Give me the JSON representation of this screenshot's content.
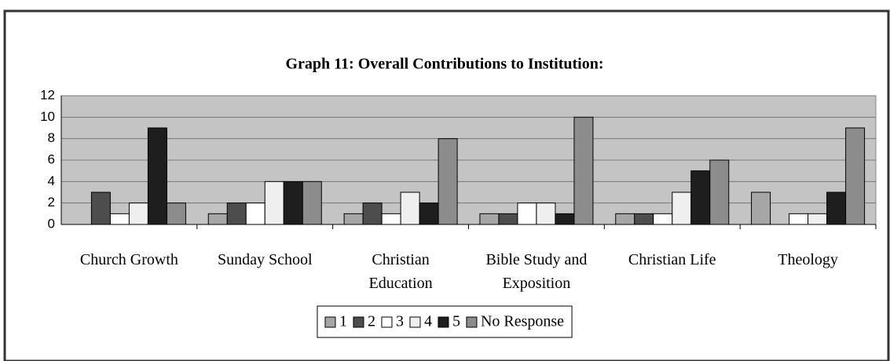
{
  "chart_data": {
    "type": "bar",
    "title": "Graph 11: Overall Contributions to Institution:",
    "categories": [
      "Church Growth",
      "Sunday School",
      "Christian Education",
      "Bible Study and Exposition",
      "Christian Life",
      "Theology"
    ],
    "series": [
      {
        "name": "1",
        "color": "#a6a6a6",
        "values": [
          0,
          1,
          1,
          1,
          1,
          3
        ]
      },
      {
        "name": "2",
        "color": "#4d4d4d",
        "values": [
          3,
          2,
          2,
          1,
          1,
          0
        ]
      },
      {
        "name": "3",
        "color": "#ffffff",
        "values": [
          1,
          2,
          1,
          2,
          1,
          1
        ]
      },
      {
        "name": "4",
        "color": "#efefef",
        "values": [
          2,
          4,
          3,
          2,
          3,
          1
        ]
      },
      {
        "name": "5",
        "color": "#1e1e1e",
        "values": [
          9,
          4,
          2,
          1,
          5,
          3
        ]
      },
      {
        "name": "No Response",
        "color": "#8c8c8c",
        "values": [
          2,
          4,
          8,
          10,
          6,
          9
        ]
      }
    ],
    "ylim": [
      0,
      12
    ],
    "yticks": [
      0,
      2,
      4,
      6,
      8,
      10,
      12
    ],
    "grid": true,
    "legend": "bottom"
  }
}
